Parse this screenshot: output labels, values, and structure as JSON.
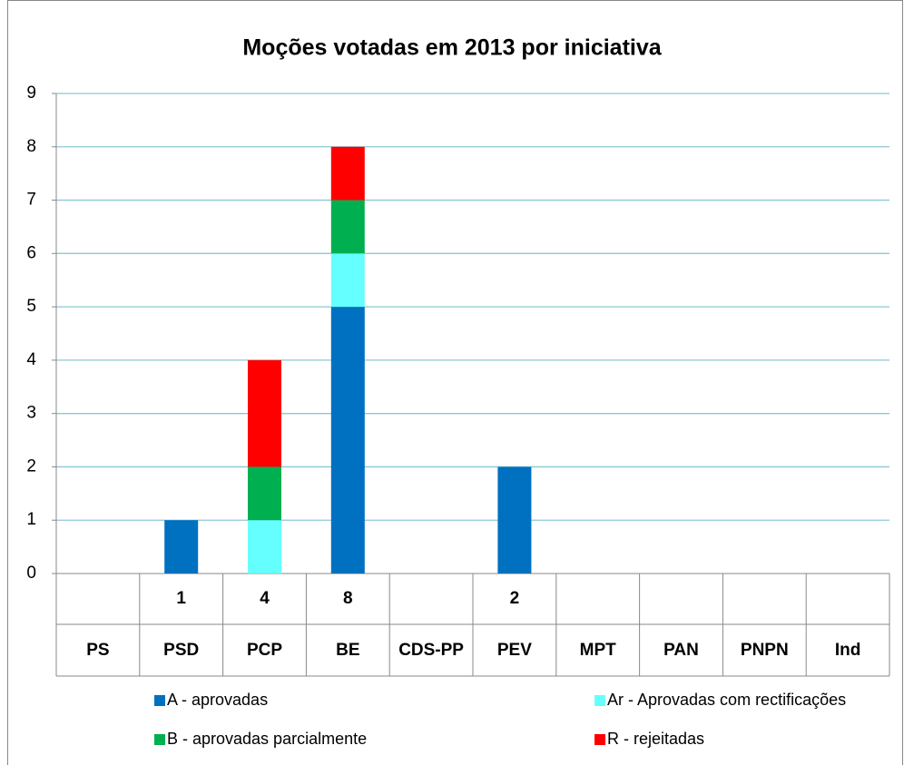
{
  "chart_data": {
    "type": "stacked-bar",
    "title": "Moções votadas em 2013 por iniciativa",
    "categories": [
      "PS",
      "PSD",
      "PCP",
      "BE",
      "CDS-PP",
      "PEV",
      "MPT",
      "PAN",
      "PNPN",
      "Ind"
    ],
    "series": [
      {
        "name": "A - aprovadas",
        "color": "#0070c0",
        "values": [
          0,
          1,
          0,
          5,
          0,
          2,
          0,
          0,
          0,
          0
        ]
      },
      {
        "name": "Ar - Aprovadas com rectificações",
        "color": "#66ffff",
        "values": [
          0,
          0,
          1,
          1,
          0,
          0,
          0,
          0,
          0,
          0
        ]
      },
      {
        "name": "B - aprovadas parcialmente",
        "color": "#00b050",
        "values": [
          0,
          0,
          1,
          1,
          0,
          0,
          0,
          0,
          0,
          0
        ]
      },
      {
        "name": "R - rejeitadas",
        "color": "#ff0000",
        "values": [
          0,
          0,
          2,
          1,
          0,
          0,
          0,
          0,
          0,
          0
        ]
      }
    ],
    "totals": [
      null,
      1,
      4,
      8,
      null,
      2,
      null,
      null,
      null,
      null
    ],
    "ylim": [
      0,
      9
    ],
    "yticks": [
      0,
      1,
      2,
      3,
      4,
      5,
      6,
      7,
      8,
      9
    ],
    "grid": true,
    "legend": "bottom"
  }
}
